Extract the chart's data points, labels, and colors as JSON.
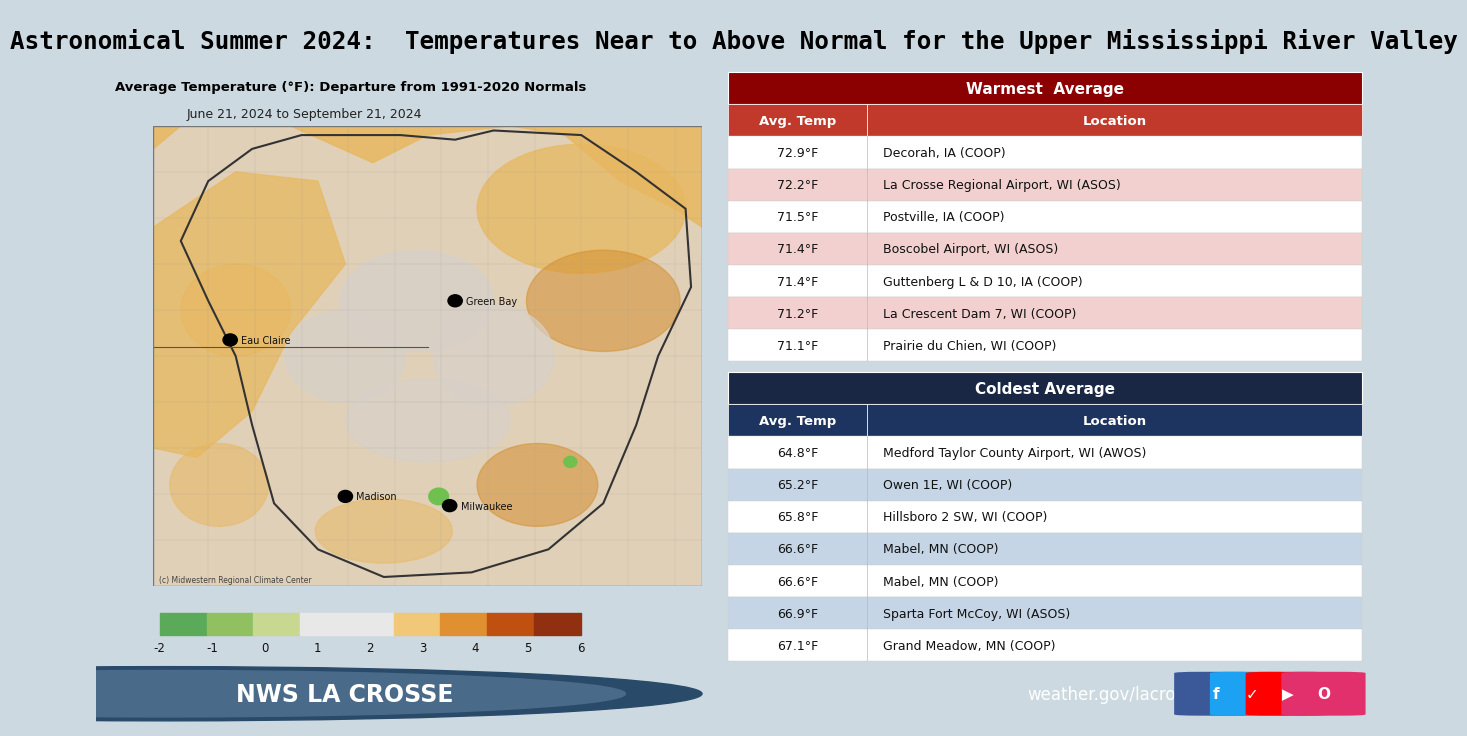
{
  "title": "Astronomical Summer 2024:  Temperatures Near to Above Normal for the Upper Mississippi River Valley",
  "title_color": "#000000",
  "title_fontsize": 17.5,
  "subtitle": "Average Temperature (°F): Departure from 1991-2020 Normals",
  "date_range": "June 21, 2024 to September 21, 2024",
  "bg_color": "#ccd9e0",
  "footer_bg": "#4d6070",
  "footer_text_left": "NWS LA CROSSE",
  "footer_text_right": "weather.gov/lacrosse",
  "warmest_header": "Warmest  Average",
  "warmest_header_bg": "#8b0000",
  "warmest_col_header_bg": "#c0392b",
  "warmest_row_colors": [
    "#ffffff",
    "#f2d0d0",
    "#ffffff",
    "#f2d0d0",
    "#ffffff",
    "#f2d0d0",
    "#ffffff"
  ],
  "warmest_data": [
    [
      "72.9°F",
      "Decorah, IA (COOP)"
    ],
    [
      "72.2°F",
      "La Crosse Regional Airport, WI (ASOS)"
    ],
    [
      "71.5°F",
      "Postville, IA (COOP)"
    ],
    [
      "71.4°F",
      "Boscobel Airport, WI (ASOS)"
    ],
    [
      "71.4°F",
      "Guttenberg L & D 10, IA (COOP)"
    ],
    [
      "71.2°F",
      "La Crescent Dam 7, WI (COOP)"
    ],
    [
      "71.1°F",
      "Prairie du Chien, WI (COOP)"
    ]
  ],
  "coldest_header": "Coldest Average",
  "coldest_header_bg": "#1a2744",
  "coldest_col_header_bg": "#1e3460",
  "coldest_row_colors": [
    "#ffffff",
    "#c5d5e5",
    "#ffffff",
    "#c5d5e5",
    "#ffffff",
    "#c5d5e5",
    "#ffffff"
  ],
  "coldest_data": [
    [
      "64.8°F",
      "Medford Taylor County Airport, WI (AWOS)"
    ],
    [
      "65.2°F",
      "Owen 1E, WI (COOP)"
    ],
    [
      "65.8°F",
      "Hillsboro 2 SW, WI (COOP)"
    ],
    [
      "66.6°F",
      "Mabel, MN (COOP)"
    ],
    [
      "66.6°F",
      "Mabel, MN (COOP)"
    ],
    [
      "66.9°F",
      "Sparta Fort McCoy, WI (ASOS)"
    ],
    [
      "67.1°F",
      "Grand Meadow, MN (COOP)"
    ]
  ],
  "cbar_colors": [
    "#5aaa5a",
    "#90c060",
    "#c8d890",
    "#e8e8e8",
    "#e8e8e8",
    "#f0c878",
    "#e09030",
    "#c05010",
    "#903010"
  ],
  "colorbar_ticks": [
    "-2",
    "-1",
    "0",
    "1",
    "2",
    "3",
    "4",
    "5",
    "6"
  ],
  "map_bg": "#e0d0b8",
  "map_neutral": "#d8d0c8",
  "map_warm1": "#e8b860",
  "map_warm2": "#d49030",
  "map_green": "#70c050"
}
